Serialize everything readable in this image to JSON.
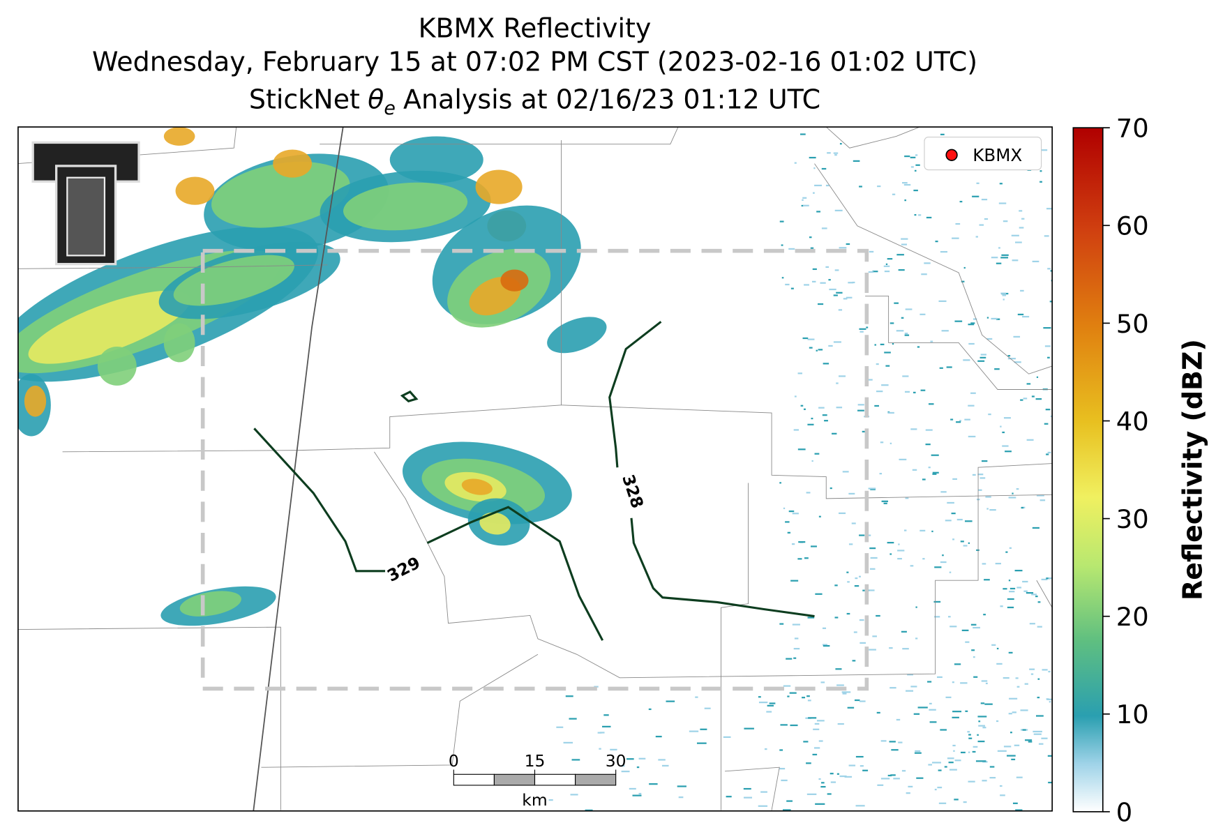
{
  "header": {
    "title_line1": "KBMX Reflectivity",
    "title_line2": "Wednesday, February 15 at 07:02 PM CST (2023-02-16 01:02 UTC)",
    "title_line3": {
      "prefix": "StickNet",
      "symbol": "θ",
      "subscript": "e",
      "suffix": "Analysis at 02/16/23 01:12 UTC"
    }
  },
  "legend": {
    "label": "KBMX"
  },
  "contours": [
    {
      "label": "329"
    },
    {
      "label": "328"
    }
  ],
  "scale_bar": {
    "ticks": [
      0,
      15,
      30
    ],
    "unit": "km"
  },
  "colorbar": {
    "label": "Reflectivity (dBZ)",
    "lim": [
      0,
      70
    ],
    "ticks": [
      0,
      10,
      20,
      30,
      40,
      50,
      60,
      70
    ]
  }
}
